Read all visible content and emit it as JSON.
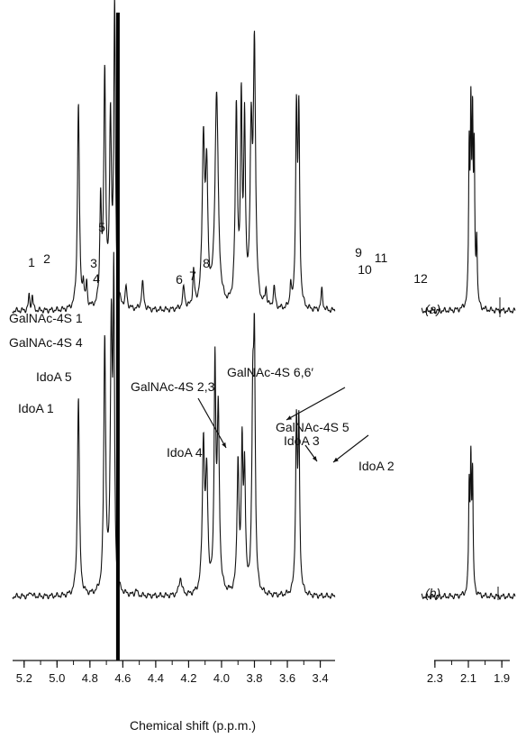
{
  "chart_data": {
    "type": "line",
    "xlabel": "Chemical shift (p.p.m.)",
    "x_reversed": true,
    "main_axis": {
      "xlim": [
        5.27,
        3.31
      ],
      "ticks": [
        "5.2",
        "5.0",
        "4.8",
        "4.6",
        "4.4",
        "4.2",
        "4.0",
        "3.8",
        "3.6",
        "3.4"
      ]
    },
    "inset_axis": {
      "xlim": [
        2.38,
        1.82
      ],
      "ticks": [
        "2.3",
        "2.1",
        "1.9"
      ]
    },
    "water_peak_ppm": 4.63,
    "series": [
      {
        "tag": "(a)",
        "peak_labels": [
          {
            "text": "1",
            "x": 5.17
          },
          {
            "text": "2",
            "x": 5.15
          },
          {
            "text": "3",
            "x": 4.84
          },
          {
            "text": "4",
            "x": 4.82
          },
          {
            "text": "5",
            "x": 4.73
          },
          {
            "text": "6",
            "x": 4.48
          },
          {
            "text": "7",
            "x": 4.23
          },
          {
            "text": "8",
            "x": 4.17
          },
          {
            "text": "9",
            "x": 3.73
          },
          {
            "text": "10",
            "x": 3.68
          },
          {
            "text": "11",
            "x": 3.58
          },
          {
            "text": "12",
            "x": 3.39
          }
        ],
        "peaks": [
          {
            "x": 5.17,
            "h": 0.05,
            "w": 0.005
          },
          {
            "x": 5.15,
            "h": 0.05,
            "w": 0.005
          },
          {
            "x": 4.87,
            "h": 0.7,
            "w": 0.007
          },
          {
            "x": 4.84,
            "h": 0.08,
            "w": 0.005
          },
          {
            "x": 4.82,
            "h": 0.08,
            "w": 0.005
          },
          {
            "x": 4.735,
            "h": 0.35,
            "w": 0.006
          },
          {
            "x": 4.71,
            "h": 0.78,
            "w": 0.007
          },
          {
            "x": 4.675,
            "h": 0.62,
            "w": 0.007
          },
          {
            "x": 4.65,
            "h": 1.0,
            "w": 0.006
          },
          {
            "x": 4.58,
            "h": 0.07,
            "w": 0.006
          },
          {
            "x": 4.48,
            "h": 0.09,
            "w": 0.008
          },
          {
            "x": 4.23,
            "h": 0.07,
            "w": 0.008
          },
          {
            "x": 4.17,
            "h": 0.12,
            "w": 0.006
          },
          {
            "x": 4.11,
            "h": 0.55,
            "w": 0.009
          },
          {
            "x": 4.09,
            "h": 0.42,
            "w": 0.008
          },
          {
            "x": 4.03,
            "h": 0.72,
            "w": 0.012
          },
          {
            "x": 3.91,
            "h": 0.66,
            "w": 0.008
          },
          {
            "x": 3.88,
            "h": 0.65,
            "w": 0.006
          },
          {
            "x": 3.86,
            "h": 0.6,
            "w": 0.006
          },
          {
            "x": 3.82,
            "h": 0.55,
            "w": 0.008
          },
          {
            "x": 3.8,
            "h": 0.86,
            "w": 0.008
          },
          {
            "x": 3.73,
            "h": 0.06,
            "w": 0.006
          },
          {
            "x": 3.68,
            "h": 0.07,
            "w": 0.007
          },
          {
            "x": 3.58,
            "h": 0.08,
            "w": 0.005
          },
          {
            "x": 3.545,
            "h": 0.64,
            "w": 0.006
          },
          {
            "x": 3.53,
            "h": 0.63,
            "w": 0.006
          },
          {
            "x": 3.39,
            "h": 0.07,
            "w": 0.006
          }
        ],
        "inset_peaks": [
          {
            "x": 2.095,
            "h": 0.5,
            "w": 0.004
          },
          {
            "x": 2.085,
            "h": 0.6,
            "w": 0.004
          },
          {
            "x": 2.075,
            "h": 0.55,
            "w": 0.004
          },
          {
            "x": 2.065,
            "h": 0.48,
            "w": 0.004
          },
          {
            "x": 2.05,
            "h": 0.22,
            "w": 0.004
          }
        ]
      },
      {
        "tag": "(b)",
        "peak_labels": [
          {
            "text": "GalNAc-4S 1",
            "x": 4.72
          },
          {
            "text": "GalNAc-4S 4",
            "x": 4.71
          },
          {
            "text": "IdoA 5",
            "x": 4.7
          },
          {
            "text": "IdoA 1",
            "x": 4.87
          },
          {
            "text": "GalNAc-4S 2,3",
            "x": 4.04
          },
          {
            "text": "GalNAc-4S 6,6′",
            "x": 3.8
          },
          {
            "text": "IdoA 3",
            "x": 3.9
          },
          {
            "text": "GalNAc-4S 5",
            "x": 3.87
          },
          {
            "text": "IdoA 4",
            "x": 4.1
          },
          {
            "text": "IdoA 2",
            "x": 3.53
          }
        ],
        "peaks": [
          {
            "x": 5.16,
            "h": 0.02,
            "w": 0.005
          },
          {
            "x": 4.87,
            "h": 0.68,
            "w": 0.007
          },
          {
            "x": 4.71,
            "h": 0.86,
            "w": 0.007
          },
          {
            "x": 4.67,
            "h": 0.9,
            "w": 0.007
          },
          {
            "x": 4.655,
            "h": 1.0,
            "w": 0.005
          },
          {
            "x": 4.52,
            "h": 0.02,
            "w": 0.006
          },
          {
            "x": 4.25,
            "h": 0.06,
            "w": 0.01
          },
          {
            "x": 4.11,
            "h": 0.5,
            "w": 0.008
          },
          {
            "x": 4.09,
            "h": 0.38,
            "w": 0.008
          },
          {
            "x": 4.04,
            "h": 0.76,
            "w": 0.006
          },
          {
            "x": 4.02,
            "h": 0.6,
            "w": 0.008
          },
          {
            "x": 3.9,
            "h": 0.44,
            "w": 0.007
          },
          {
            "x": 3.875,
            "h": 0.48,
            "w": 0.006
          },
          {
            "x": 3.86,
            "h": 0.4,
            "w": 0.006
          },
          {
            "x": 3.81,
            "h": 0.6,
            "w": 0.007
          },
          {
            "x": 3.8,
            "h": 0.76,
            "w": 0.006
          },
          {
            "x": 3.545,
            "h": 0.56,
            "w": 0.006
          },
          {
            "x": 3.53,
            "h": 0.55,
            "w": 0.006
          }
        ],
        "inset_peaks": [
          {
            "x": 2.095,
            "h": 0.35,
            "w": 0.004
          },
          {
            "x": 2.085,
            "h": 0.42,
            "w": 0.004
          },
          {
            "x": 2.075,
            "h": 0.38,
            "w": 0.004
          }
        ]
      }
    ]
  }
}
